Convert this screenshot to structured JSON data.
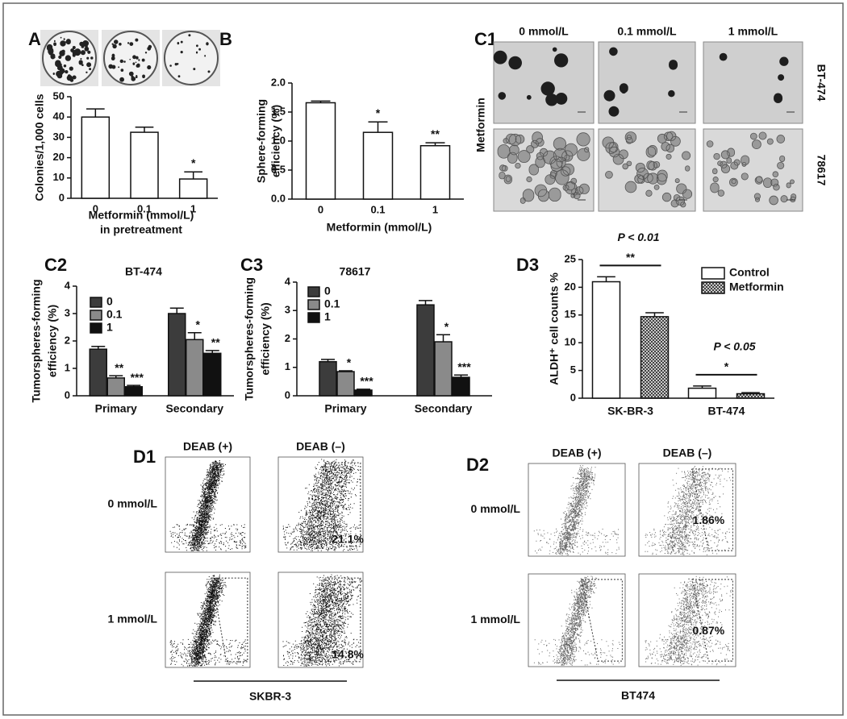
{
  "chart_data": [
    {
      "type": "bar",
      "panel": "A",
      "categories": [
        "0",
        "0.1",
        "1"
      ],
      "values": [
        40,
        32.5,
        9.5
      ],
      "errors": [
        4,
        2.5,
        3.5
      ],
      "annotations": [
        null,
        null,
        "*"
      ],
      "color": "#ffffff",
      "ylim": [
        0,
        50
      ],
      "yticks": [
        0,
        10,
        20,
        30,
        40,
        50
      ],
      "ylabel": [
        "Colonies/1,000 cells"
      ],
      "xlabel": [
        "Metformin (mmol/L)",
        "in pretreatment"
      ]
    },
    {
      "type": "bar",
      "panel": "B",
      "categories": [
        "0",
        "0.1",
        "1"
      ],
      "values": [
        1.66,
        1.15,
        0.92
      ],
      "errors": [
        0.03,
        0.18,
        0.05
      ],
      "annotations": [
        null,
        "*",
        "**"
      ],
      "color": "#ffffff",
      "ylim": [
        0,
        2
      ],
      "yticks": [
        {
          "value": 0,
          "label": "0.0"
        },
        {
          "value": 0.5,
          "label": "0.5"
        },
        {
          "value": 1,
          "label": "1.0"
        },
        {
          "value": 1.5,
          "label": "1.5"
        },
        {
          "value": 2,
          "label": "2.0"
        }
      ],
      "ylabel": [
        "Sphere-forming",
        "efficiency (%)"
      ],
      "xlabel": [
        "Metformin (mmol/L)"
      ]
    },
    {
      "type": "bar",
      "panel": "C2",
      "title": "BT-474",
      "categories": [
        "Primary",
        "Secondary"
      ],
      "series": [
        {
          "name": "0",
          "color": "#3c3c3c",
          "values": [
            1.7,
            3.0
          ],
          "errors": [
            0.1,
            0.2
          ],
          "annotations": [
            null,
            null
          ]
        },
        {
          "name": "0.1",
          "color": "#8a8a8a",
          "values": [
            0.65,
            2.05
          ],
          "errors": [
            0.08,
            0.25
          ],
          "annotations": [
            "**",
            "*"
          ]
        },
        {
          "name": "1",
          "color": "#111111",
          "values": [
            0.33,
            1.55
          ],
          "errors": [
            0.05,
            0.1
          ],
          "annotations": [
            "***",
            "**"
          ]
        }
      ],
      "ylim": [
        0,
        4
      ],
      "yticks": [
        0,
        1,
        2,
        3,
        4
      ],
      "ylabel": [
        "Tumorspheres-forming",
        "efficiency (%)"
      ]
    },
    {
      "type": "bar",
      "panel": "C3",
      "title": "78617",
      "categories": [
        "Primary",
        "Secondary"
      ],
      "series": [
        {
          "name": "0",
          "color": "#3c3c3c",
          "values": [
            1.2,
            3.2
          ],
          "errors": [
            0.08,
            0.15
          ],
          "annotations": [
            null,
            null
          ]
        },
        {
          "name": "0.1",
          "color": "#8a8a8a",
          "values": [
            0.85,
            1.9
          ],
          "errors": [
            0.03,
            0.25
          ],
          "annotations": [
            "*",
            "*"
          ]
        },
        {
          "name": "1",
          "color": "#111111",
          "values": [
            0.2,
            0.65
          ],
          "errors": [
            0.03,
            0.08
          ],
          "annotations": [
            "***",
            "***"
          ]
        }
      ],
      "ylim": [
        0,
        4
      ],
      "yticks": [
        0,
        1,
        2,
        3,
        4
      ],
      "ylabel": [
        "Tumorspheres-forming",
        "efficiency (%)"
      ]
    },
    {
      "type": "bar",
      "panel": "D3",
      "categories": [
        "SK-BR-3",
        "BT-474"
      ],
      "series": [
        {
          "name": "Control",
          "color": "#ffffff",
          "hatch": false,
          "values": [
            21,
            1.8
          ],
          "errors": [
            0.9,
            0.4
          ]
        },
        {
          "name": "Metformin",
          "color": "#777777",
          "hatch": true,
          "values": [
            14.7,
            0.8
          ],
          "errors": [
            0.7,
            0.2
          ]
        }
      ],
      "comparisons": [
        {
          "label": "**",
          "p": "P < 0.01"
        },
        {
          "label": "*",
          "p": "P < 0.05"
        }
      ],
      "ylim": [
        0,
        25
      ],
      "yticks": [
        0,
        5,
        10,
        15,
        20,
        25
      ],
      "ylabel": [
        "ALDH⁺ cell counts %"
      ]
    }
  ],
  "sphere_images": {
    "panel": "C1",
    "columns": [
      "0 mmol/L",
      "0.1 mmol/L",
      "1 mmol/L"
    ],
    "rows": [
      "BT-474",
      "78617"
    ],
    "side_label": "Metformin"
  },
  "flow": [
    {
      "panel": "D1",
      "columns": [
        "DEAB (+)",
        "DEAB (–)"
      ],
      "rows": [
        "0 mmol/L",
        "1 mmol/L"
      ],
      "percentages": [
        "21.1%",
        "14.8%"
      ],
      "cell_line": "SKBR-3"
    },
    {
      "panel": "D2",
      "columns": [
        "DEAB (+)",
        "DEAB (–)"
      ],
      "rows": [
        "0 mmol/L",
        "1 mmol/L"
      ],
      "percentages": [
        "1.86%",
        "0.87%"
      ],
      "cell_line": "BT474"
    }
  ]
}
